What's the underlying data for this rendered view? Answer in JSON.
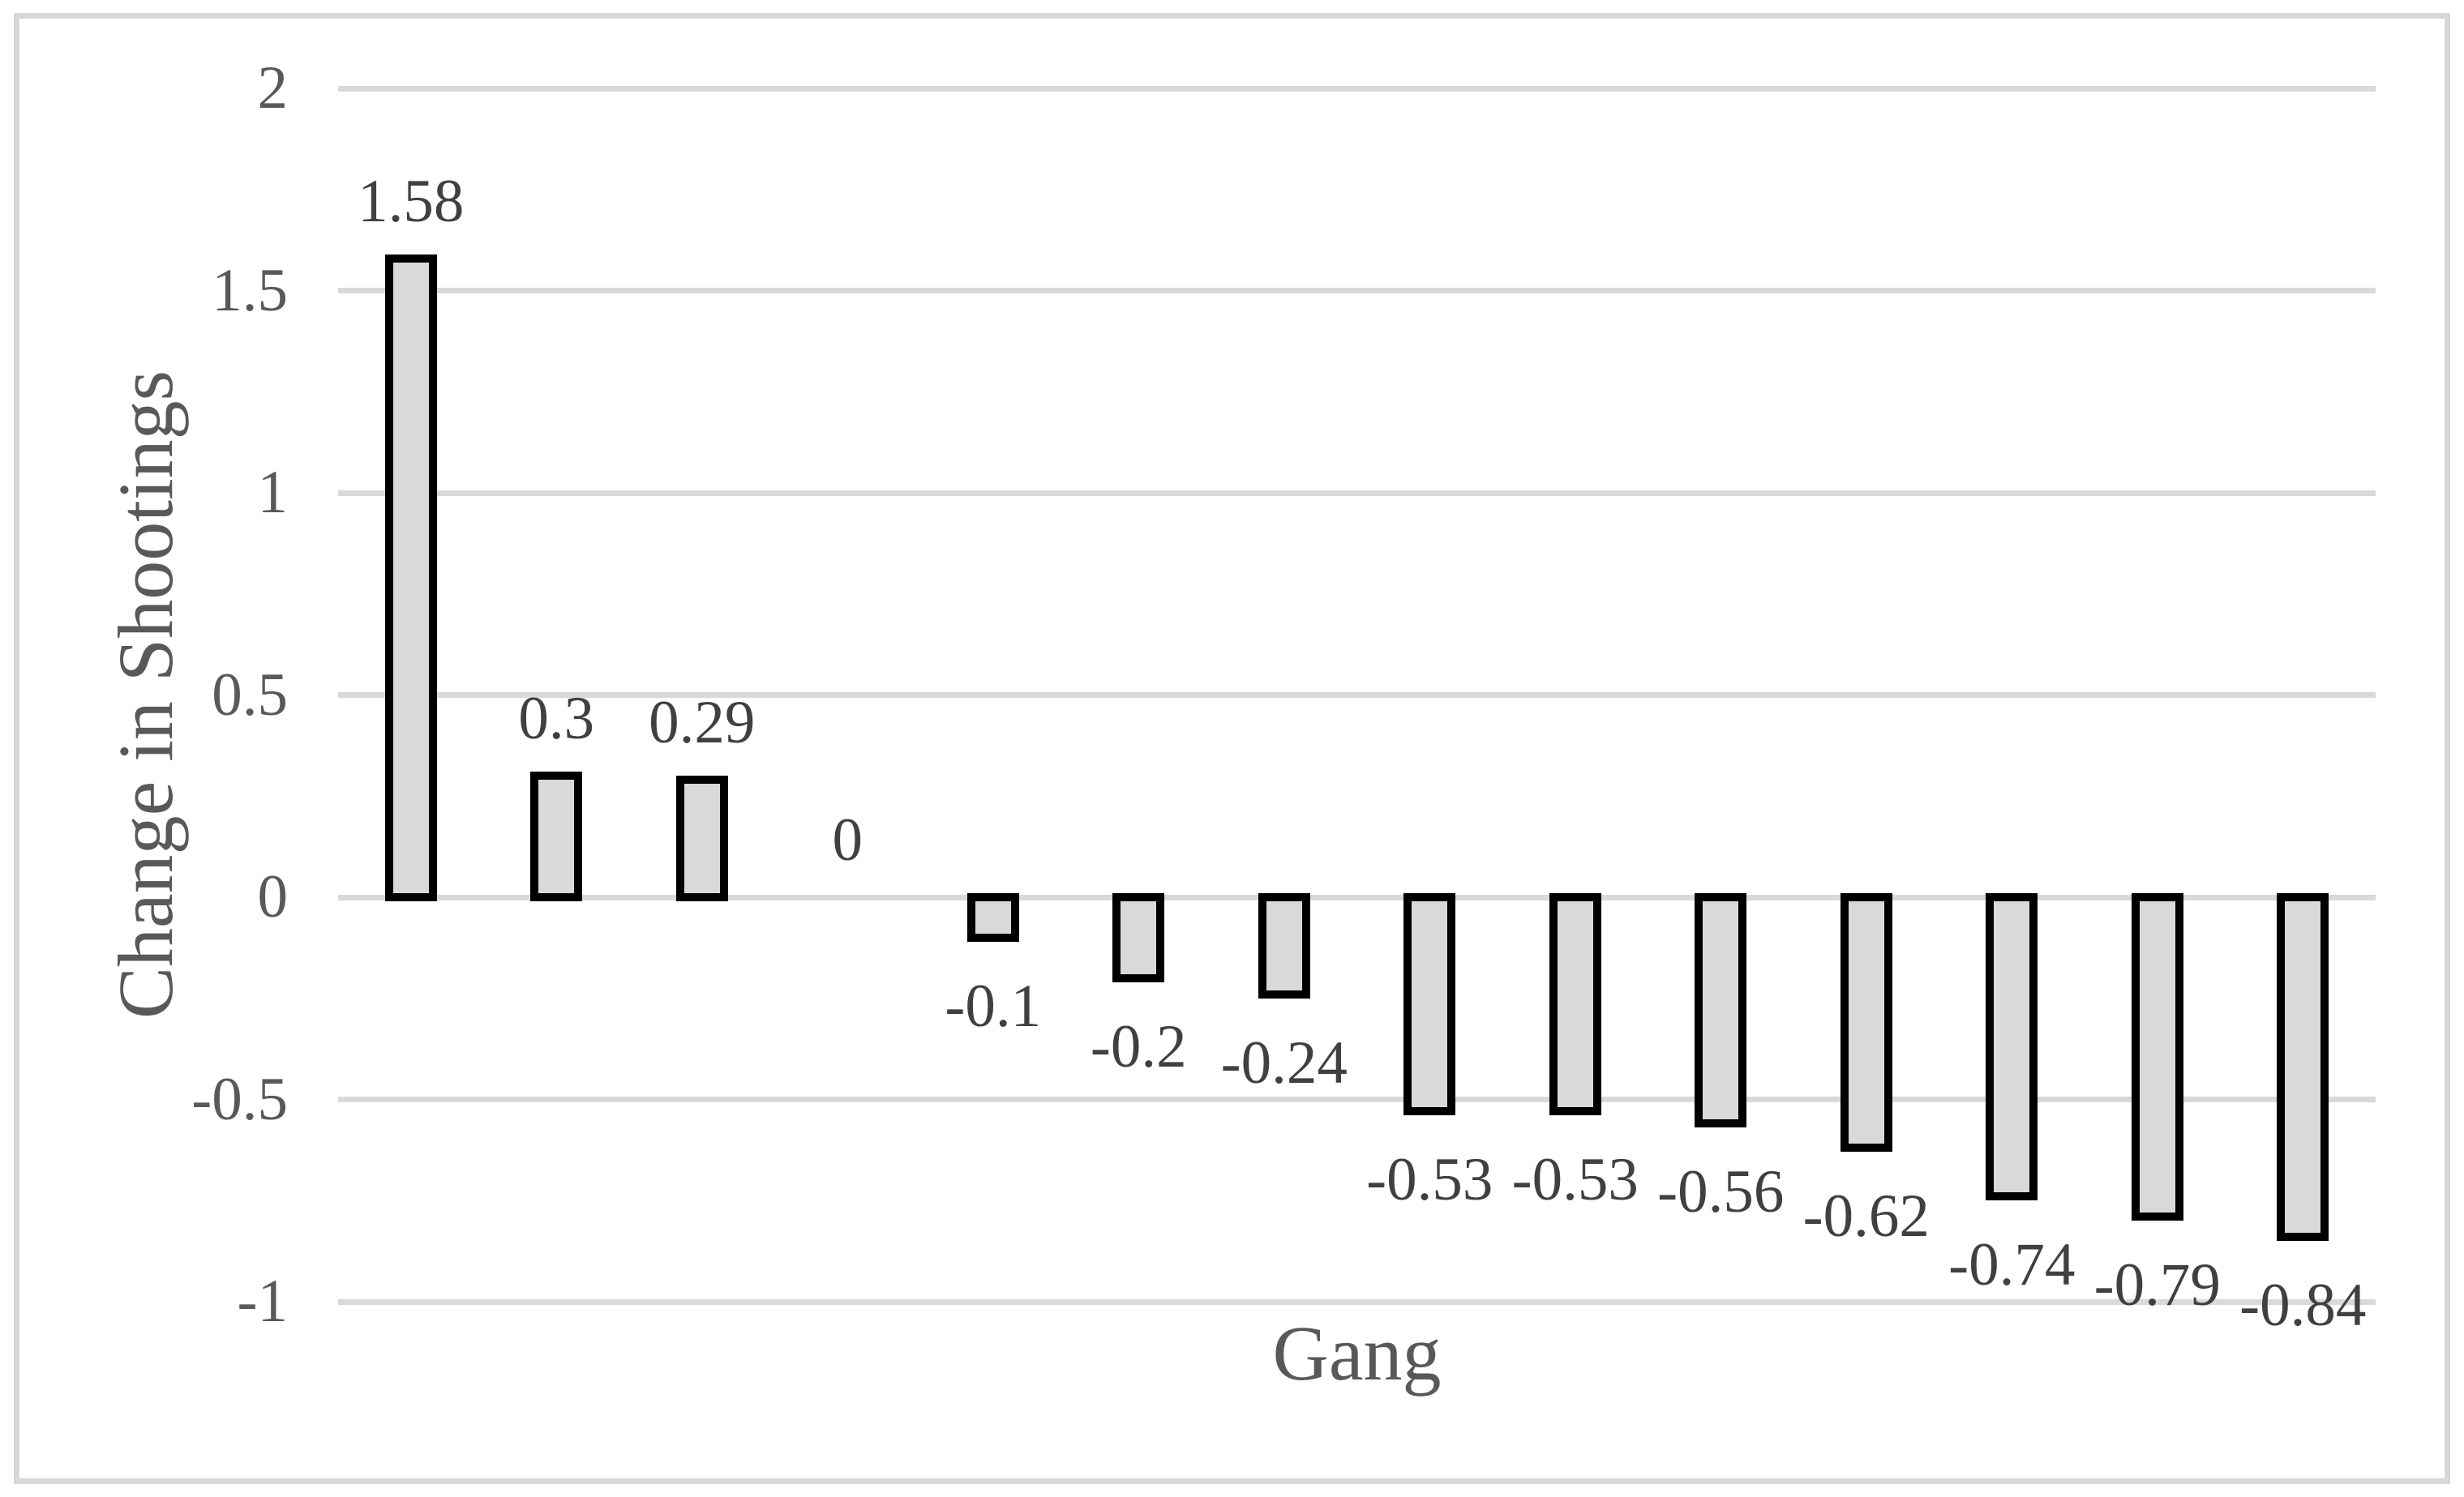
{
  "chart_data": {
    "type": "bar",
    "title": "",
    "xlabel": "Gang",
    "ylabel": "Change in Shootings",
    "values": [
      1.58,
      0.3,
      0.29,
      0,
      -0.1,
      -0.2,
      -0.24,
      -0.53,
      -0.53,
      -0.56,
      -0.62,
      -0.74,
      -0.79,
      -0.84
    ],
    "bar_labels": [
      "1.58",
      "0.3",
      "0.29",
      "0",
      "-0.1",
      "-0.2",
      "-0.24",
      "-0.53",
      "-0.53",
      "-0.56",
      "-0.62",
      "-0.74",
      "-0.79",
      "-0.84"
    ],
    "y_tick_labels": [
      "2",
      "1.5",
      "1",
      "0.5",
      "0",
      "-0.5",
      "-1"
    ],
    "y_tick_values": [
      2,
      1.5,
      1,
      0.5,
      0,
      -0.5,
      -1
    ],
    "ylim": [
      -1,
      2
    ],
    "x_tick_labels_visible": false,
    "grid": "horizontal",
    "legend": "none",
    "colors": {
      "bar_fill": "#d9d9d9",
      "bar_border": "#000000",
      "gridline": "#d9d9d9",
      "axis_text": "#595959",
      "data_label_text": "#404040",
      "frame_border": "#d8d8d8",
      "background": "#ffffff"
    }
  }
}
